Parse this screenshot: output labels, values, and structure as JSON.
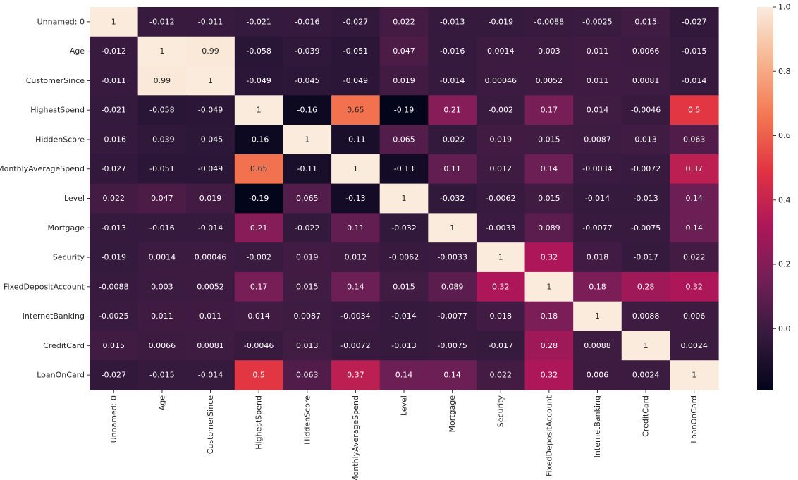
{
  "chart_data": {
    "type": "heatmap",
    "title": "",
    "xlabel": "",
    "ylabel": "",
    "labels": [
      "Unnamed: 0",
      "Age",
      "CustomerSince",
      "HighestSpend",
      "HiddenScore",
      "MonthlyAverageSpend",
      "Level",
      "Mortgage",
      "Security",
      "FixedDepositAccount",
      "InternetBanking",
      "CreditCard",
      "LoanOnCard"
    ],
    "matrix": [
      [
        1,
        -0.012,
        -0.011,
        -0.021,
        -0.016,
        -0.027,
        0.022,
        -0.013,
        -0.019,
        -0.0088,
        -0.0025,
        0.015,
        -0.027
      ],
      [
        -0.012,
        1,
        0.99,
        -0.058,
        -0.039,
        -0.051,
        0.047,
        -0.016,
        0.0014,
        0.003,
        0.011,
        0.0066,
        -0.015
      ],
      [
        -0.011,
        0.99,
        1,
        -0.049,
        -0.045,
        -0.049,
        0.019,
        -0.014,
        0.00046,
        0.0052,
        0.011,
        0.0081,
        -0.014
      ],
      [
        -0.021,
        -0.058,
        -0.049,
        1,
        -0.16,
        0.65,
        -0.19,
        0.21,
        -0.002,
        0.17,
        0.014,
        -0.0046,
        0.5
      ],
      [
        -0.016,
        -0.039,
        -0.045,
        -0.16,
        1,
        -0.11,
        0.065,
        -0.022,
        0.019,
        0.015,
        0.0087,
        0.013,
        0.063
      ],
      [
        -0.027,
        -0.051,
        -0.049,
        0.65,
        -0.11,
        1,
        -0.13,
        0.11,
        0.012,
        0.14,
        -0.0034,
        -0.0072,
        0.37
      ],
      [
        0.022,
        0.047,
        0.019,
        -0.19,
        0.065,
        -0.13,
        1,
        -0.032,
        -0.0062,
        0.015,
        -0.014,
        -0.013,
        0.14
      ],
      [
        -0.013,
        -0.016,
        -0.014,
        0.21,
        -0.022,
        0.11,
        -0.032,
        1,
        -0.0033,
        0.089,
        -0.0077,
        -0.0075,
        0.14
      ],
      [
        -0.019,
        0.0014,
        0.00046,
        -0.002,
        0.019,
        0.012,
        -0.0062,
        -0.0033,
        1,
        0.32,
        0.018,
        -0.017,
        0.022
      ],
      [
        -0.0088,
        0.003,
        0.0052,
        0.17,
        0.015,
        0.14,
        0.015,
        0.089,
        0.32,
        1,
        0.18,
        0.28,
        0.32
      ],
      [
        -0.0025,
        0.011,
        0.011,
        0.014,
        0.0087,
        -0.0034,
        -0.014,
        -0.0077,
        0.018,
        0.18,
        1,
        0.0088,
        0.006
      ],
      [
        0.015,
        0.0066,
        0.0081,
        -0.0046,
        0.013,
        -0.0072,
        -0.013,
        -0.0075,
        -0.017,
        0.28,
        0.0088,
        1,
        0.0024
      ],
      [
        -0.027,
        -0.015,
        -0.014,
        0.5,
        0.063,
        0.37,
        0.14,
        0.14,
        0.022,
        0.32,
        0.006,
        0.0024,
        1
      ]
    ],
    "colorbar": {
      "min": -0.19,
      "max": 1.0,
      "ticks": [
        "0.0",
        "0.2",
        "0.4",
        "0.6",
        "0.8",
        "1.0"
      ],
      "tick_values": [
        0.0,
        0.2,
        0.4,
        0.6,
        0.8,
        1.0
      ],
      "colormap": "rocket",
      "colors": [
        "#03051a",
        "#341a3d",
        "#701f57",
        "#ad1759",
        "#e13342",
        "#f37651",
        "#f6b48f",
        "#faebdd"
      ]
    },
    "annotations": true,
    "grid": false
  }
}
